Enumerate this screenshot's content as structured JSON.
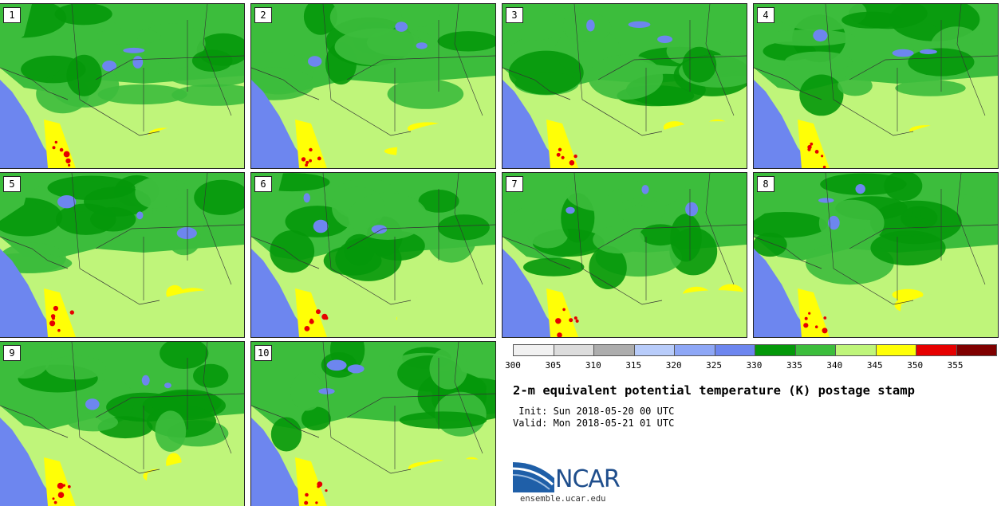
{
  "panels": [
    {
      "label": "1"
    },
    {
      "label": "2"
    },
    {
      "label": "3"
    },
    {
      "label": "4"
    },
    {
      "label": "5"
    },
    {
      "label": "6"
    },
    {
      "label": "7"
    },
    {
      "label": "8"
    },
    {
      "label": "9"
    },
    {
      "label": "10"
    }
  ],
  "colorbar": {
    "colors": [
      "#f1f1f1",
      "#dcdcdc",
      "#adadad",
      "#b8ccfa",
      "#8ea7f6",
      "#6d86ef",
      "#04980a",
      "#3cbd3c",
      "#bff57a",
      "#ffff06",
      "#e60000",
      "#7f0000"
    ],
    "ticks": [
      "300",
      "305",
      "310",
      "315",
      "320",
      "325",
      "330",
      "335",
      "340",
      "345",
      "350",
      "355"
    ]
  },
  "title": "2-m equivalent potential temperature (K) postage stamp",
  "init": " Init: Sun 2018-05-20 00 UTC",
  "valid": "Valid: Mon 2018-05-21 01 UTC",
  "logo": {
    "text": "NCAR",
    "url": "ensemble.ucar.edu"
  }
}
